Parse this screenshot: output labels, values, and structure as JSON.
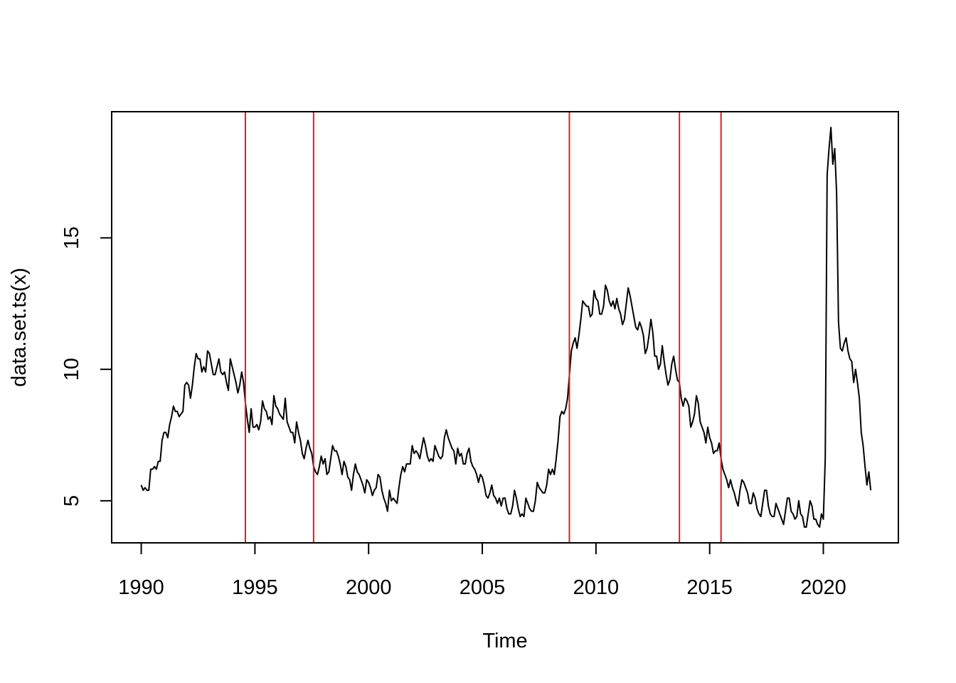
{
  "chart_data": {
    "type": "line",
    "title": "",
    "xlabel": "Time",
    "ylabel": "data.set.ts(x)",
    "xlim": [
      1988.7,
      2023.3
    ],
    "ylim": [
      3.4,
      19.8
    ],
    "x_ticks": [
      1990,
      1995,
      2000,
      2005,
      2010,
      2015,
      2020
    ],
    "x_tick_labels": [
      "1990",
      "1995",
      "2000",
      "2005",
      "2010",
      "2015",
      "2020"
    ],
    "y_ticks": [
      5,
      10,
      15
    ],
    "y_tick_labels": [
      "5",
      "10",
      "15"
    ],
    "grid": false,
    "legend": "none",
    "line_color": "#000000",
    "vline_color": "#e41a1c",
    "vlines": [
      1994.58,
      1997.58,
      2008.83,
      2013.67,
      2015.5
    ],
    "series": [
      {
        "start": 1990.0,
        "frequency": 12,
        "values": [
          5.6,
          5.4,
          5.5,
          5.4,
          5.4,
          6.2,
          6.2,
          6.3,
          6.2,
          6.5,
          6.5,
          7.3,
          7.6,
          7.6,
          7.4,
          7.9,
          8.2,
          8.6,
          8.4,
          8.4,
          8.2,
          8.3,
          8.4,
          9.4,
          9.5,
          9.4,
          8.9,
          9.4,
          10.1,
          10.6,
          10.4,
          10.4,
          9.9,
          10.1,
          9.9,
          10.7,
          10.6,
          10.2,
          9.8,
          9.8,
          10.1,
          10.4,
          9.9,
          9.8,
          9.9,
          9.5,
          9.2,
          10.4,
          10.1,
          9.8,
          9.5,
          9.1,
          9.4,
          9.9,
          9.5,
          8.7,
          8.1,
          7.6,
          8.5,
          7.8,
          7.8,
          7.9,
          7.7,
          8.0,
          8.8,
          8.5,
          8.4,
          8.1,
          8.2,
          7.9,
          9.0,
          8.6,
          8.5,
          8.3,
          8.2,
          8.1,
          8.9,
          8.0,
          7.8,
          7.6,
          7.6,
          7.2,
          8.0,
          7.6,
          7.3,
          6.8,
          6.6,
          7.0,
          7.3,
          7.0,
          6.8,
          6.3,
          6.1,
          6.0,
          6.3,
          6.7,
          6.4,
          6.6,
          6.0,
          6.1,
          6.6,
          7.1,
          6.9,
          6.9,
          6.7,
          6.4,
          6.0,
          6.5,
          6.3,
          5.9,
          5.8,
          5.4,
          6.0,
          6.4,
          6.1,
          6.0,
          5.8,
          5.6,
          5.3,
          5.8,
          5.7,
          5.5,
          5.2,
          5.4,
          5.5,
          6.0,
          5.9,
          5.4,
          5.1,
          4.9,
          4.6,
          5.4,
          5.0,
          5.1,
          5.0,
          4.9,
          5.5,
          6.0,
          6.3,
          6.1,
          6.4,
          6.4,
          6.4,
          7.1,
          6.8,
          6.9,
          6.8,
          6.6,
          7.0,
          7.4,
          7.1,
          6.7,
          6.5,
          6.6,
          6.5,
          7.1,
          6.9,
          6.7,
          6.6,
          6.7,
          7.4,
          7.7,
          7.4,
          7.2,
          7.0,
          6.9,
          6.4,
          7.0,
          6.7,
          6.8,
          6.4,
          6.4,
          6.8,
          7.0,
          6.5,
          6.3,
          6.2,
          6.0,
          5.7,
          6.0,
          5.9,
          5.6,
          5.2,
          5.1,
          5.3,
          5.6,
          5.2,
          5.1,
          4.9,
          5.1,
          4.8,
          5.1,
          5.1,
          4.7,
          4.5,
          4.5,
          4.8,
          5.4,
          5.1,
          4.7,
          4.4,
          4.5,
          4.4,
          5.1,
          4.9,
          4.7,
          4.6,
          4.6,
          5.0,
          5.7,
          5.5,
          5.4,
          5.3,
          5.3,
          5.6,
          6.2,
          6.0,
          6.2,
          6.0,
          6.6,
          7.3,
          8.2,
          8.4,
          8.3,
          8.5,
          8.9,
          9.8,
          10.7,
          11.0,
          11.2,
          10.8,
          11.3,
          11.9,
          12.6,
          12.5,
          12.4,
          12.4,
          12.0,
          12.1,
          13.0,
          12.7,
          12.6,
          12.1,
          12.1,
          12.4,
          13.2,
          13.0,
          12.6,
          12.4,
          12.6,
          12.3,
          12.7,
          12.3,
          12.1,
          11.7,
          11.9,
          12.5,
          13.1,
          12.8,
          12.4,
          12.0,
          11.6,
          11.5,
          11.8,
          11.6,
          11.3,
          10.6,
          10.8,
          11.3,
          11.9,
          11.4,
          10.5,
          10.5,
          10.0,
          10.2,
          10.9,
          10.3,
          9.8,
          9.4,
          9.6,
          10.2,
          10.5,
          10.0,
          9.6,
          9.5,
          8.9,
          8.6,
          8.9,
          8.8,
          8.6,
          7.8,
          8.0,
          8.3,
          9.0,
          8.7,
          8.0,
          7.8,
          7.6,
          7.2,
          7.8,
          7.4,
          7.2,
          6.8,
          6.9,
          6.9,
          7.2,
          6.6,
          6.2,
          6.0,
          5.8,
          5.5,
          5.8,
          5.5,
          5.3,
          5.0,
          4.8,
          5.4,
          5.8,
          5.7,
          5.5,
          5.3,
          4.9,
          4.9,
          5.3,
          5.1,
          4.7,
          4.5,
          4.4,
          4.9,
          5.4,
          5.4,
          4.8,
          4.5,
          4.4,
          4.4,
          4.9,
          4.7,
          4.5,
          4.3,
          4.1,
          4.6,
          5.1,
          5.1,
          4.6,
          4.5,
          4.3,
          4.4,
          5.0,
          4.5,
          4.4,
          4.0,
          4.0,
          4.5,
          5.0,
          4.8,
          4.3,
          4.3,
          4.1,
          4.0,
          4.5,
          4.3,
          6.6,
          17.4,
          18.4,
          19.2,
          17.8,
          18.4,
          16.7,
          11.8,
          10.8,
          10.7,
          11.0,
          11.2,
          10.7,
          10.4,
          10.3,
          9.5,
          10.0,
          9.5,
          8.9,
          7.6,
          7.1,
          6.3,
          5.6,
          6.1,
          5.4
        ]
      }
    ]
  }
}
